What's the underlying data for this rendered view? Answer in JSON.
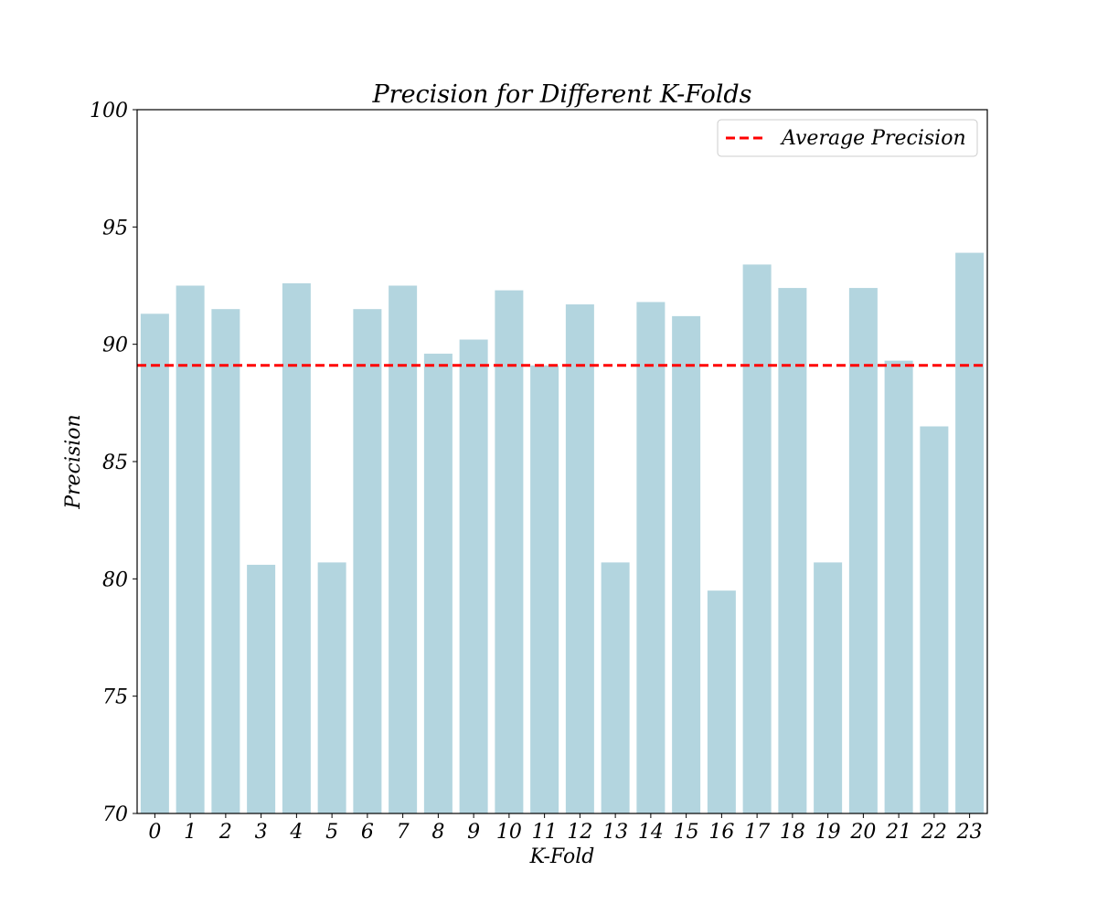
{
  "chart_data": {
    "type": "bar",
    "title": "Precision for Different K-Folds",
    "xlabel": "K-Fold",
    "ylabel": "Precision",
    "ylim": [
      70,
      100
    ],
    "yticks": [
      70,
      75,
      80,
      85,
      90,
      95,
      100
    ],
    "categories": [
      "0",
      "1",
      "2",
      "3",
      "4",
      "5",
      "6",
      "7",
      "8",
      "9",
      "10",
      "11",
      "12",
      "13",
      "14",
      "15",
      "16",
      "17",
      "18",
      "19",
      "20",
      "21",
      "22",
      "23"
    ],
    "values": [
      91.3,
      92.5,
      91.5,
      80.6,
      92.6,
      80.7,
      91.5,
      92.5,
      89.6,
      90.2,
      92.3,
      89.1,
      91.7,
      80.7,
      91.8,
      91.2,
      79.5,
      93.4,
      92.4,
      80.7,
      92.4,
      89.3,
      86.5,
      93.9
    ],
    "bar_color": "#b3d5df",
    "reference_line": {
      "label": "Average Precision",
      "value": 89.1,
      "color": "#ff0000",
      "style": "dashed"
    },
    "legend": {
      "entries": [
        "Average Precision"
      ],
      "placement": "top-right"
    },
    "grid": false
  }
}
